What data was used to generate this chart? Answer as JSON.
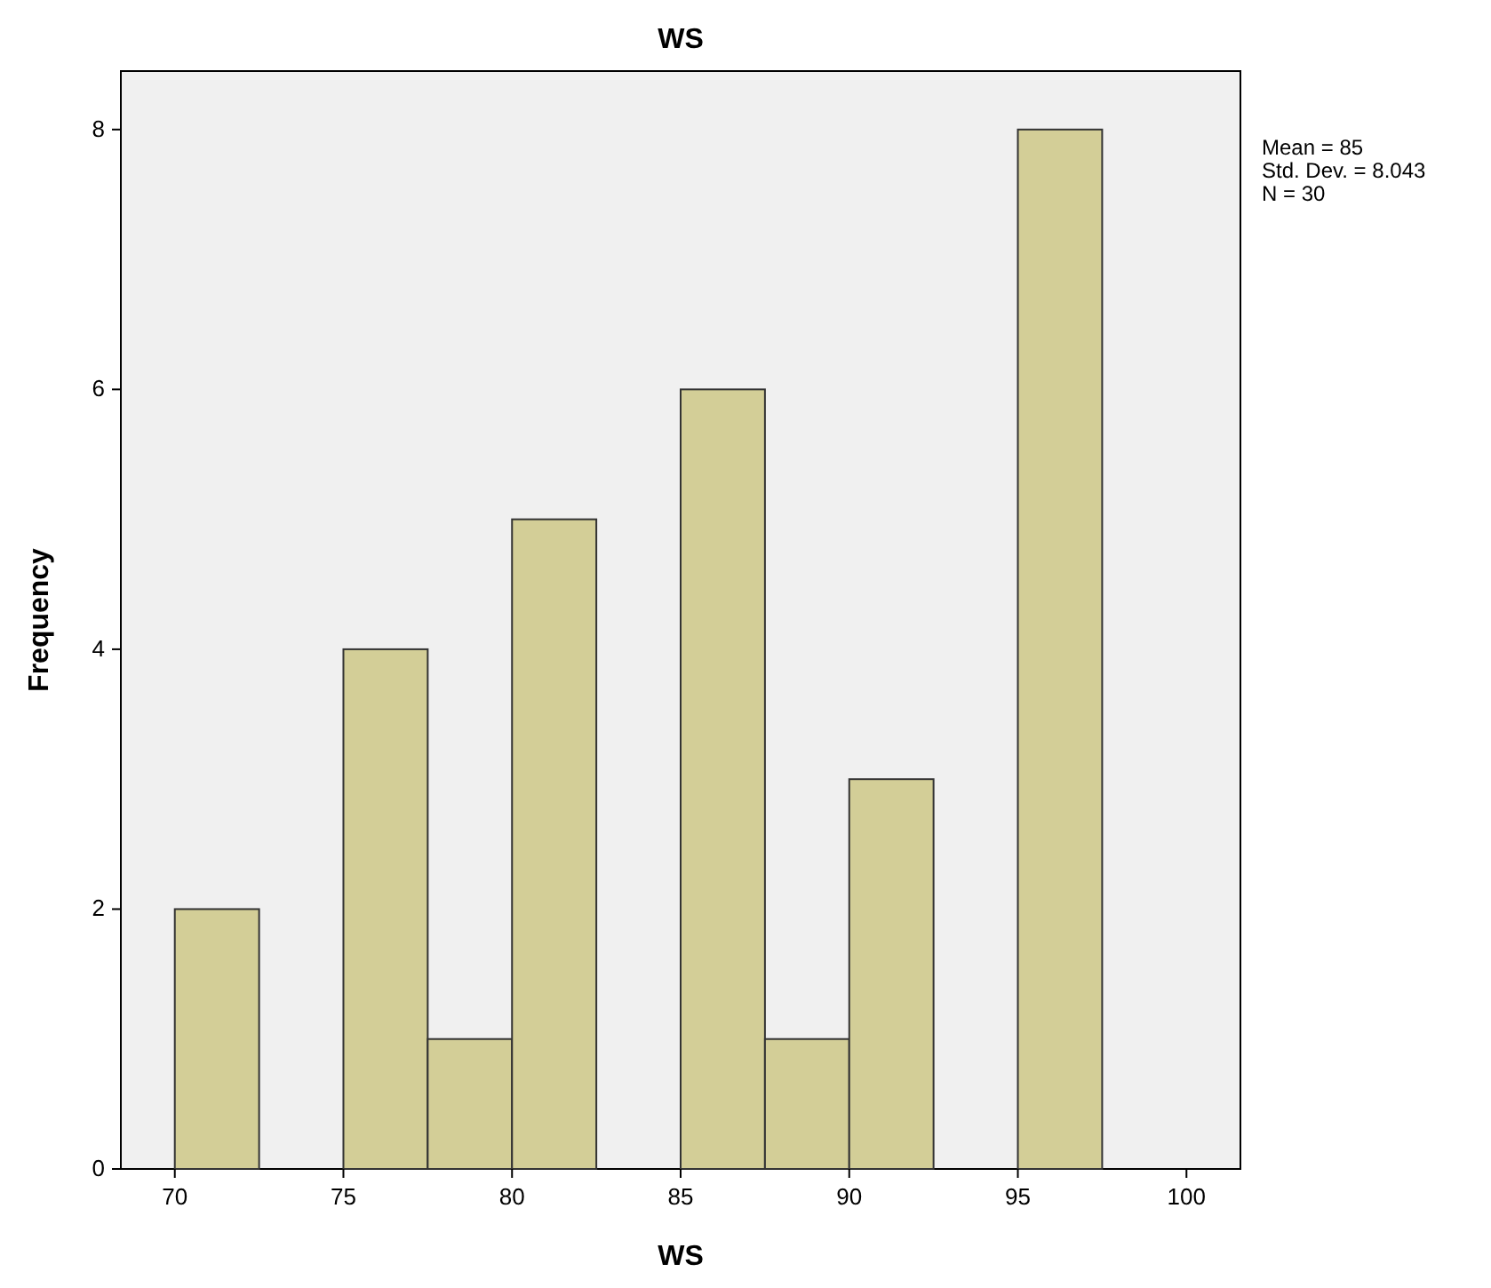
{
  "chart_data": {
    "type": "histogram",
    "title": "WS",
    "xlabel": "WS",
    "ylabel": "Frequency",
    "bins": [
      70,
      72.5,
      75,
      77.5,
      80,
      82.5,
      85,
      87.5,
      90,
      92.5,
      95,
      97.5
    ],
    "values": [
      2,
      0,
      4,
      1,
      5,
      0,
      6,
      1,
      3,
      0,
      8
    ],
    "color": "#d3ce97",
    "xlim": [
      68.4,
      101.6
    ],
    "xticks": [
      70,
      75,
      80,
      85,
      90,
      95,
      100
    ],
    "ylim": [
      0,
      8.45
    ],
    "yticks": [
      0,
      2,
      4,
      6,
      8
    ],
    "grid": false,
    "annotations": [
      "Mean = 85",
      "Std. Dev. = 8.043",
      "N = 30"
    ]
  }
}
